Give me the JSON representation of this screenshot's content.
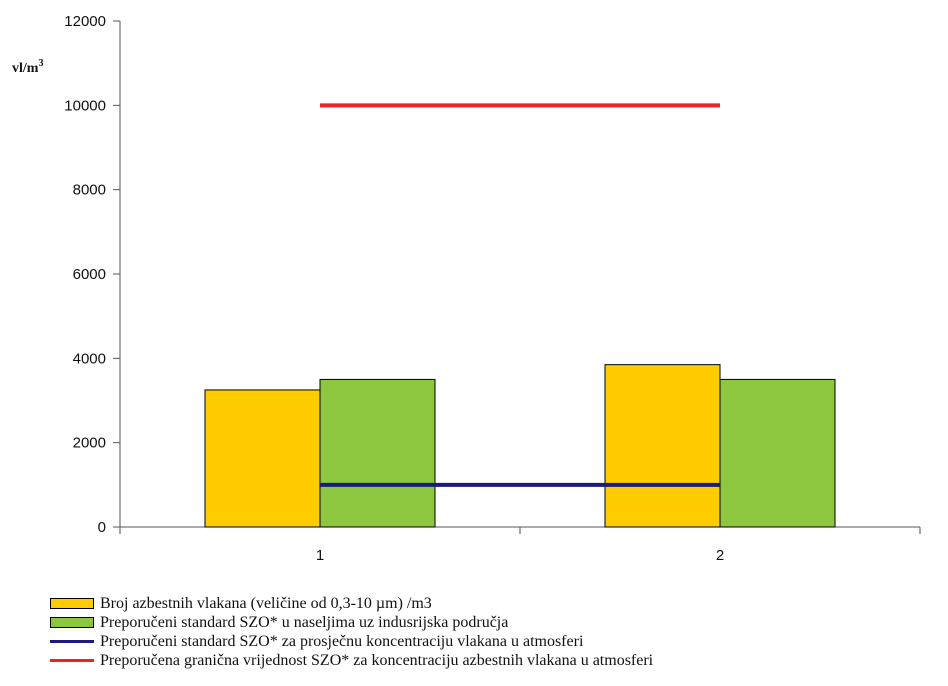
{
  "chart_data": {
    "type": "bar",
    "categories": [
      "1",
      "2"
    ],
    "ylabel": "vl/m",
    "ylabel_superscript": "3",
    "ylim": [
      0,
      12000
    ],
    "yticks": [
      "0",
      "2000",
      "4000",
      "6000",
      "8000",
      "10000",
      "12000"
    ],
    "series": [
      {
        "name": "Broj azbestnih vlakana (veličine od 0,3-10 µm) /m3",
        "kind": "bar",
        "color": "#FFCC00",
        "values": [
          3250,
          3850
        ]
      },
      {
        "name": "Preporučeni standard SZO* u naseljima uz indusrijska područja",
        "kind": "bar",
        "color": "#8DC63F",
        "values": [
          3500,
          3500
        ]
      },
      {
        "name": "Preporučeni standard SZO* za prosječnu koncentraciju vlakana u atmosferi",
        "kind": "line",
        "color": "#1A1A80",
        "values": [
          1000,
          1000
        ]
      },
      {
        "name": "Preporučena granična vrijednost SZO* za koncentraciju azbestnih vlakana u atmosferi",
        "kind": "line",
        "color": "#EE2222",
        "values": [
          10000,
          10000
        ]
      }
    ],
    "grid": false,
    "legend_position": "bottom"
  }
}
